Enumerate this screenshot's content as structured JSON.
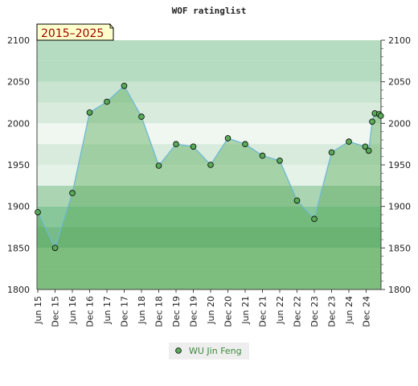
{
  "chart_data": {
    "type": "area",
    "title": "WOF ratinglist",
    "period_label": "2015–2025",
    "xlabel": "",
    "ylabel": "",
    "ylim": [
      1800,
      2100
    ],
    "yticks": [
      1800,
      1850,
      1900,
      1950,
      2000,
      2050,
      2100
    ],
    "xticks": [
      "Jun 15",
      "Dec 15",
      "Jun 16",
      "Dec 16",
      "Jun 17",
      "Dec 17",
      "Jun 18",
      "Dec 18",
      "Dec 19",
      "Dec 19",
      "Jun 20",
      "Dec 20",
      "Jun 21",
      "Dec 21",
      "Jun 22",
      "Dec 22",
      "Dec 23",
      "Dec 23",
      "Jun 24",
      "Dec 24"
    ],
    "legend_position": "bottom-center",
    "grid": true,
    "series": [
      {
        "name": "WU Jin Feng",
        "color": "#6db9d4",
        "fill": "#5aaa5a",
        "points": [
          {
            "x": 0.0,
            "y": 1893
          },
          {
            "x": 1.0,
            "y": 1850
          },
          {
            "x": 2.0,
            "y": 1916
          },
          {
            "x": 3.0,
            "y": 2013
          },
          {
            "x": 4.0,
            "y": 2026
          },
          {
            "x": 5.0,
            "y": 2045
          },
          {
            "x": 6.0,
            "y": 2008
          },
          {
            "x": 7.0,
            "y": 1949
          },
          {
            "x": 8.0,
            "y": 1975
          },
          {
            "x": 9.0,
            "y": 1972
          },
          {
            "x": 10.0,
            "y": 1950
          },
          {
            "x": 11.0,
            "y": 1982
          },
          {
            "x": 12.0,
            "y": 1975
          },
          {
            "x": 13.0,
            "y": 1961
          },
          {
            "x": 14.0,
            "y": 1955
          },
          {
            "x": 15.0,
            "y": 1907
          },
          {
            "x": 16.0,
            "y": 1885
          },
          {
            "x": 17.0,
            "y": 1965
          },
          {
            "x": 18.0,
            "y": 1978
          },
          {
            "x": 18.95,
            "y": 1972
          },
          {
            "x": 19.15,
            "y": 1967
          },
          {
            "x": 19.35,
            "y": 2002
          },
          {
            "x": 19.5,
            "y": 2012
          },
          {
            "x": 19.75,
            "y": 2011
          },
          {
            "x": 19.85,
            "y": 2009
          }
        ]
      }
    ]
  }
}
